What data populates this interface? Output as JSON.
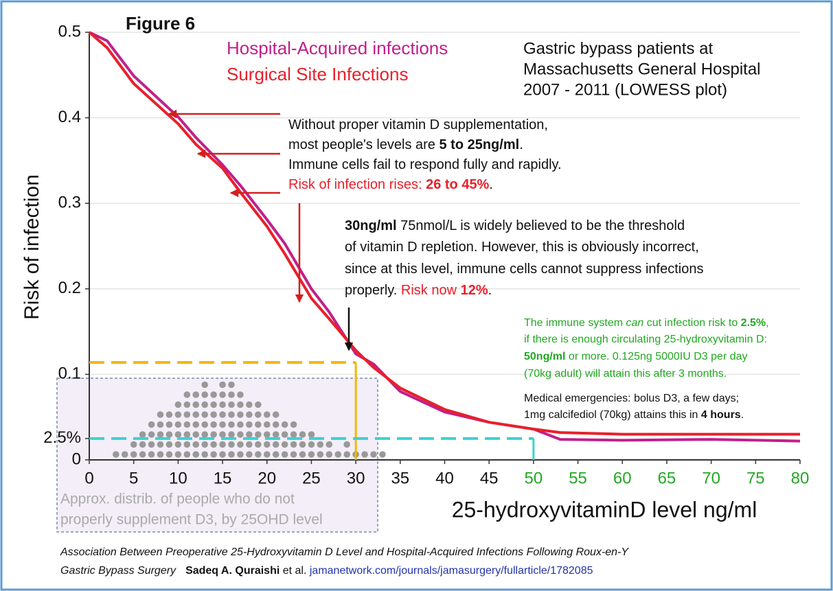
{
  "chart_data": {
    "type": "line",
    "title": "Figure 6",
    "subtitle": [
      "Gastric bypass patients at",
      "Massachusetts General Hospital",
      "2007 - 2011 (LOWESS plot)"
    ],
    "xlabel": "25-hydroxyvitaminD level ng/ml",
    "ylabel": "Risk of infection",
    "x": [
      0,
      2,
      5,
      10,
      12,
      15,
      17,
      20,
      22,
      25,
      27,
      30,
      32,
      35,
      40,
      45,
      50,
      53,
      60,
      70,
      80
    ],
    "series": [
      {
        "name": "Hospital-Acquired infections",
        "color": "#c0208a",
        "values": [
          0.5,
          0.49,
          0.449,
          0.401,
          0.377,
          0.345,
          0.321,
          0.281,
          0.253,
          0.2,
          0.173,
          0.124,
          0.112,
          0.08,
          0.056,
          0.044,
          0.036,
          0.024,
          0.023,
          0.024,
          0.022
        ]
      },
      {
        "name": "Surgical Site Infections",
        "color": "#e8202a",
        "values": [
          0.5,
          0.482,
          0.44,
          0.393,
          0.369,
          0.341,
          0.313,
          0.273,
          0.241,
          0.189,
          0.165,
          0.128,
          0.108,
          0.084,
          0.059,
          0.044,
          0.036,
          0.032,
          0.03,
          0.03,
          0.03
        ]
      }
    ],
    "xlim": [
      0,
      80
    ],
    "xticks": [
      0,
      5,
      10,
      15,
      20,
      25,
      30,
      35,
      40,
      45,
      50,
      55,
      60,
      65,
      70,
      75,
      80
    ],
    "xtick_colors": [
      "#111",
      "#111",
      "#111",
      "#111",
      "#111",
      "#111",
      "#111",
      "#111",
      "#111",
      "#111",
      "#22a822",
      "#22a822",
      "#22a822",
      "#22a822",
      "#22a822",
      "#22a822",
      "#22a822"
    ],
    "ylim": [
      0,
      0.5
    ],
    "yticks": [
      0,
      {
        "value": 0.025,
        "label": "2.5%"
      },
      0.1,
      0.2,
      0.3,
      0.4,
      0.5
    ],
    "grid": true,
    "reference_lines": [
      {
        "x": 30,
        "y": 0.114,
        "color": "#f5b800"
      },
      {
        "x": 50,
        "y": 0.025,
        "color": "#3cd0d0"
      }
    ],
    "distribution": {
      "label": [
        "Approx. distrib. of people who do not",
        "properly supplement D3, by 25OHD level"
      ],
      "color": "#999999",
      "x": [
        3,
        4,
        5,
        6,
        7,
        8,
        9,
        10,
        11,
        12,
        13,
        14,
        15,
        16,
        17,
        18,
        19,
        20,
        21,
        22,
        23,
        24,
        25,
        26,
        27,
        28,
        29,
        30,
        31,
        32,
        33
      ],
      "counts": [
        1,
        1,
        2,
        3,
        4,
        5,
        5,
        6,
        7,
        7,
        8,
        7,
        8,
        8,
        7,
        6,
        6,
        5,
        5,
        4,
        4,
        3,
        3,
        2,
        2,
        1,
        2,
        1,
        1,
        1,
        1
      ]
    },
    "annotations": [
      [
        [
          "Without proper vitamin D supplementation,"
        ],
        [
          "most people's levels are ",
          "5 to 25ng/ml",
          "."
        ],
        [
          "Immune cells fail to respond fully and rapidly."
        ],
        [
          "Risk of infection rises: ",
          "26 to 45%",
          "."
        ]
      ],
      [
        [
          "30ng/ml",
          " 75nmol/L is widely believed to be the threshold"
        ],
        [
          "of vitamin D repletion.  However, this is obviously incorrect,"
        ],
        [
          "since at this level, immune cells cannot suppress infections"
        ],
        [
          "properly.  ",
          "Risk now ",
          "12%",
          "."
        ]
      ],
      [
        [
          "The immune system ",
          "can",
          " cut infection risk to ",
          "2.5%",
          ","
        ],
        [
          "if there is enough circulating 25-hydroxyvitamin D:"
        ],
        [
          "50ng/ml",
          " or more.   0.125ng 5000IU D3 per day"
        ],
        [
          "(70kg adult) will attain this after 3 months."
        ]
      ],
      [
        [
          "Medical emergencies: bolus D3, a few days;"
        ],
        [
          "1mg calcifediol (70kg) attains this in ",
          "4 hours",
          "."
        ]
      ]
    ],
    "source": [
      [
        "Association Between Preoperative 25-Hydroxyvitamin D Level and Hospital-Acquired Infections Following Roux-en-Y"
      ],
      [
        "Gastric Bypass Surgery",
        "Sadeq A. Quraishi",
        " et al. ",
        "jamanetwork.com/journals/jamasurgery/fullarticle/1782085"
      ]
    ]
  }
}
